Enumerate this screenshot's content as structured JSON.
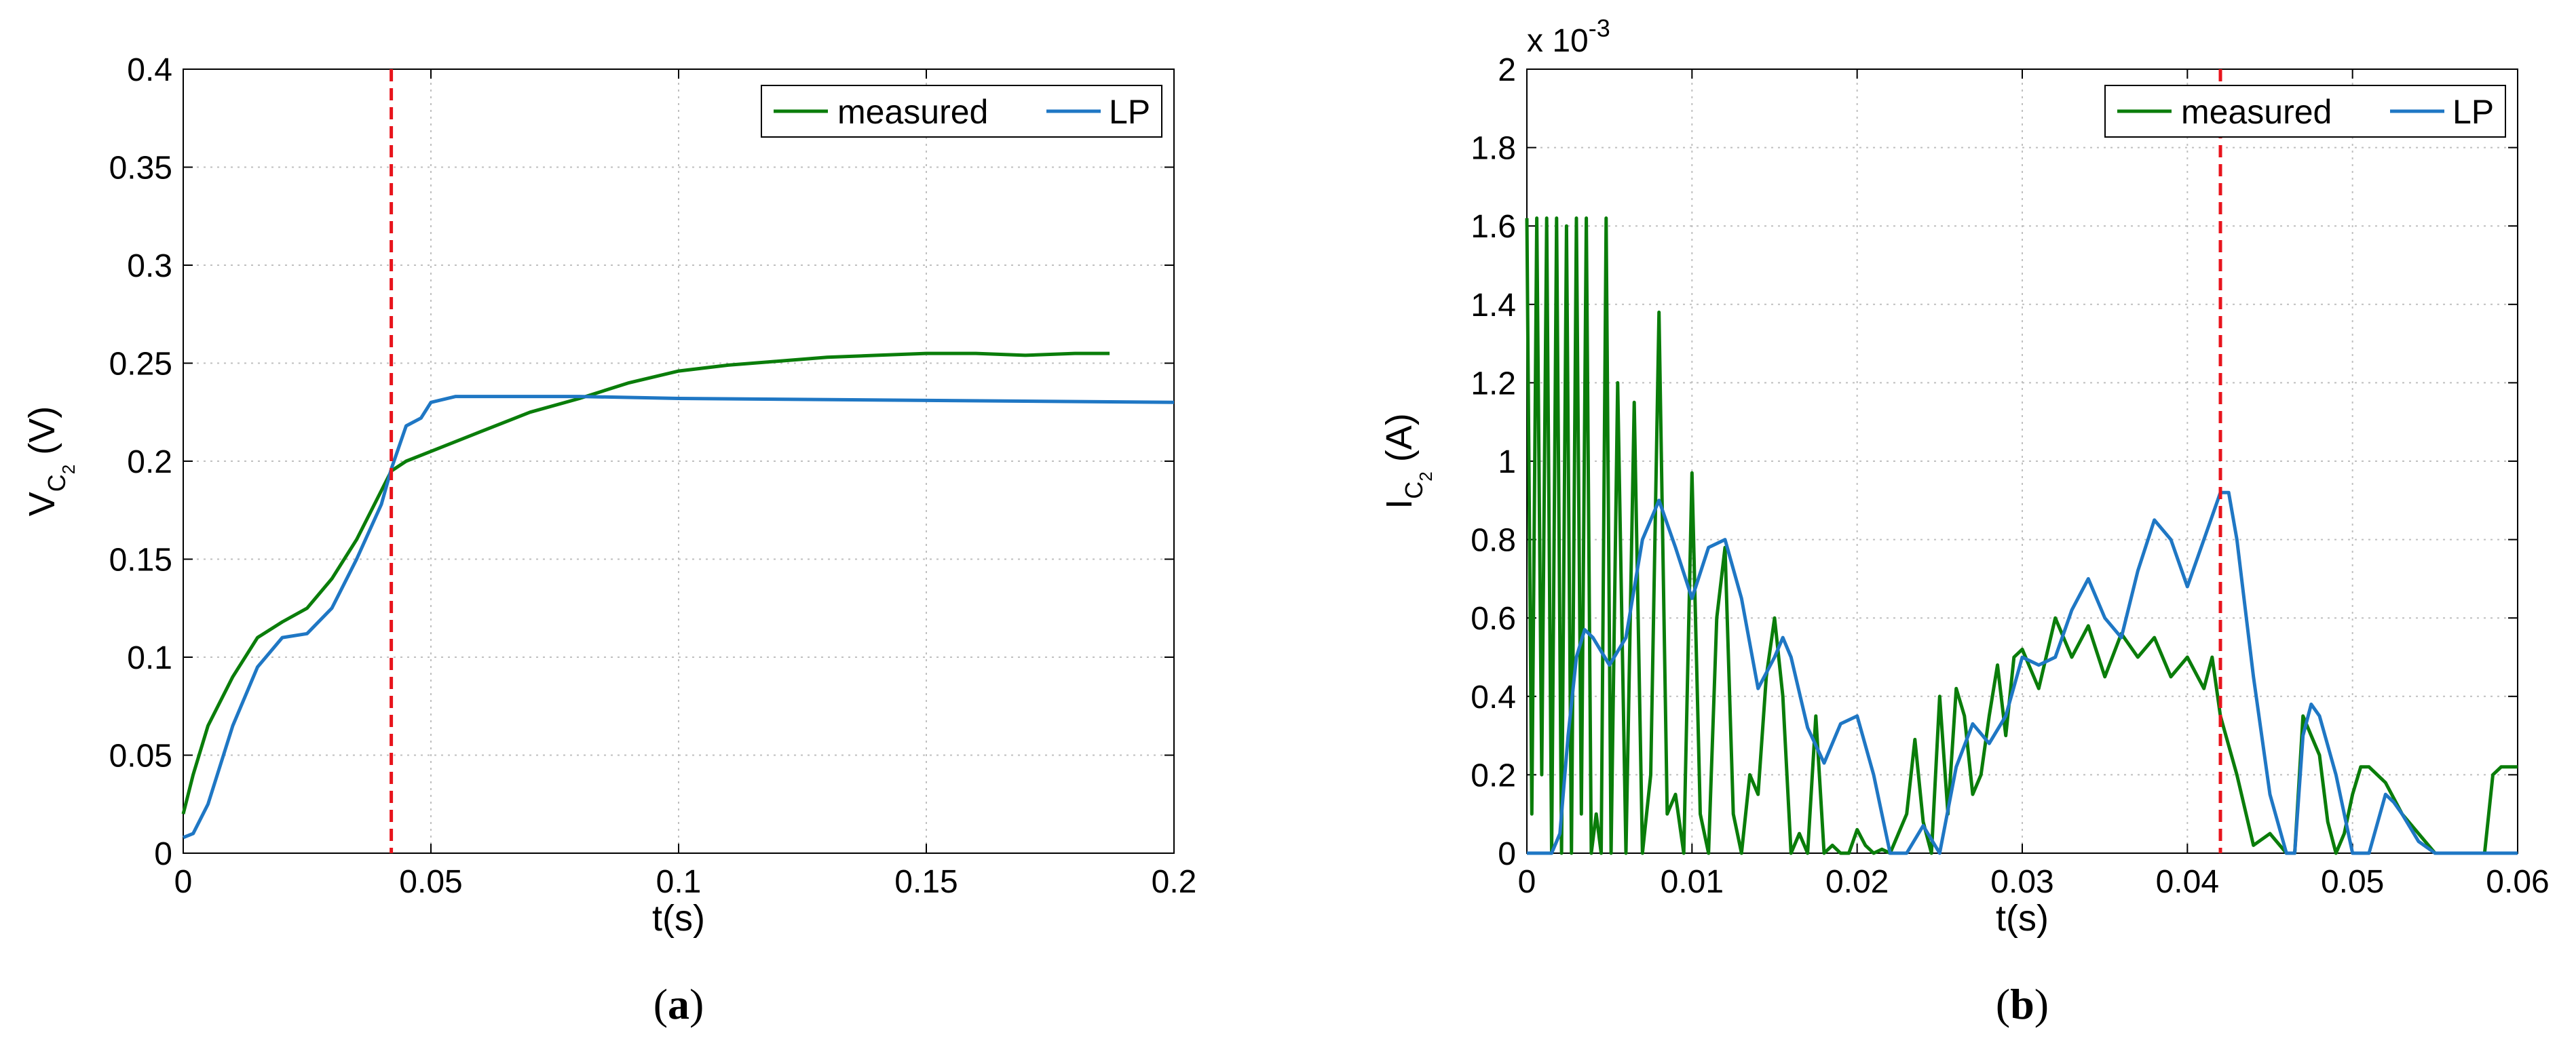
{
  "colors": {
    "measured": "#0a7d0a",
    "lp": "#1f77c4",
    "marker": "#e8141c",
    "grid": "#bfbfbf"
  },
  "chart_data": [
    {
      "panel_label": "a",
      "type": "line",
      "xlabel": "t(s)",
      "ylabel": {
        "main": "V",
        "sub1": "C",
        "sub2": "2",
        "unit": "(V)"
      },
      "xlim": [
        0,
        0.2
      ],
      "ylim": [
        0,
        0.4
      ],
      "xticks": [
        0,
        0.05,
        0.1,
        0.15,
        0.2
      ],
      "xtick_labels": [
        "0",
        "0.05",
        "0.1",
        "0.15",
        "0.2"
      ],
      "yticks": [
        0,
        0.05,
        0.1,
        0.15,
        0.2,
        0.25,
        0.3,
        0.35,
        0.4
      ],
      "ytick_labels": [
        "0",
        "0.05",
        "0.1",
        "0.15",
        "0.2",
        "0.25",
        "0.3",
        "0.35",
        "0.4"
      ],
      "grid": true,
      "legend_position": "top-right",
      "vline_x": 0.042,
      "series": [
        {
          "name": "measured",
          "color": "#0a7d0a",
          "x": [
            0,
            0.002,
            0.005,
            0.01,
            0.015,
            0.02,
            0.025,
            0.03,
            0.035,
            0.04,
            0.042,
            0.045,
            0.05,
            0.06,
            0.07,
            0.08,
            0.09,
            0.1,
            0.11,
            0.12,
            0.13,
            0.14,
            0.15,
            0.16,
            0.17,
            0.18,
            0.187
          ],
          "y": [
            0.02,
            0.04,
            0.065,
            0.09,
            0.11,
            0.118,
            0.125,
            0.14,
            0.16,
            0.185,
            0.195,
            0.2,
            0.205,
            0.215,
            0.225,
            0.232,
            0.24,
            0.246,
            0.249,
            0.251,
            0.253,
            0.254,
            0.255,
            0.255,
            0.254,
            0.255,
            0.255
          ]
        },
        {
          "name": "LP",
          "color": "#1f77c4",
          "x": [
            0,
            0.002,
            0.005,
            0.01,
            0.015,
            0.02,
            0.025,
            0.03,
            0.035,
            0.04,
            0.042,
            0.045,
            0.048,
            0.05,
            0.055,
            0.06,
            0.08,
            0.1,
            0.15,
            0.2
          ],
          "y": [
            0.008,
            0.01,
            0.025,
            0.065,
            0.095,
            0.11,
            0.112,
            0.125,
            0.15,
            0.178,
            0.196,
            0.218,
            0.222,
            0.23,
            0.233,
            0.233,
            0.233,
            0.232,
            0.231,
            0.23
          ]
        }
      ]
    },
    {
      "panel_label": "b",
      "type": "line",
      "xlabel": "t(s)",
      "ylabel": {
        "main": "I",
        "sub1": "C",
        "sub2": "2",
        "unit": "(A)"
      },
      "y_multiplier": "x 10",
      "y_multiplier_exp": "-3",
      "xlim": [
        0,
        0.06
      ],
      "ylim": [
        0,
        2
      ],
      "xticks": [
        0,
        0.01,
        0.02,
        0.03,
        0.04,
        0.05,
        0.06
      ],
      "xtick_labels": [
        "0",
        "0.01",
        "0.02",
        "0.03",
        "0.04",
        "0.05",
        "0.06"
      ],
      "yticks": [
        0,
        0.2,
        0.4,
        0.6,
        0.8,
        1,
        1.2,
        1.4,
        1.6,
        1.8,
        2
      ],
      "ytick_labels": [
        "0",
        "0.2",
        "0.4",
        "0.6",
        "0.8",
        "1",
        "1.2",
        "1.4",
        "1.6",
        "1.8",
        "2"
      ],
      "grid": true,
      "legend_position": "top-right",
      "vline_x": 0.042,
      "series": [
        {
          "name": "measured",
          "color": "#0a7d0a",
          "x": [
            0,
            0.0003,
            0.0006,
            0.0009,
            0.0012,
            0.0015,
            0.0018,
            0.0021,
            0.0024,
            0.0027,
            0.003,
            0.0033,
            0.0036,
            0.0039,
            0.0042,
            0.0045,
            0.0048,
            0.0051,
            0.0055,
            0.006,
            0.0065,
            0.007,
            0.0075,
            0.008,
            0.0085,
            0.009,
            0.0095,
            0.01,
            0.0105,
            0.011,
            0.0115,
            0.012,
            0.0125,
            0.013,
            0.0135,
            0.014,
            0.0145,
            0.015,
            0.0155,
            0.016,
            0.0165,
            0.017,
            0.0175,
            0.018,
            0.0185,
            0.019,
            0.0195,
            0.02,
            0.0205,
            0.021,
            0.0215,
            0.022,
            0.0225,
            0.023,
            0.0235,
            0.024,
            0.0245,
            0.025,
            0.0255,
            0.026,
            0.0265,
            0.027,
            0.0275,
            0.028,
            0.0285,
            0.029,
            0.0295,
            0.03,
            0.031,
            0.032,
            0.033,
            0.034,
            0.035,
            0.036,
            0.037,
            0.038,
            0.039,
            0.04,
            0.041,
            0.0415,
            0.042,
            0.043,
            0.044,
            0.045,
            0.046,
            0.0465,
            0.047,
            0.0475,
            0.048,
            0.0485,
            0.049,
            0.0495,
            0.05,
            0.0505,
            0.051,
            0.052,
            0.053,
            0.054,
            0.055,
            0.056,
            0.057,
            0.058,
            0.0585,
            0.059,
            0.06
          ],
          "y": [
            1.62,
            0.1,
            1.62,
            0.2,
            1.62,
            0,
            1.62,
            0,
            1.6,
            0,
            1.62,
            0.1,
            1.62,
            0,
            0.1,
            0,
            1.62,
            0,
            1.2,
            0,
            1.15,
            0,
            0.2,
            1.38,
            0.1,
            0.15,
            0,
            0.97,
            0.1,
            0,
            0.6,
            0.78,
            0.1,
            0,
            0.2,
            0.15,
            0.45,
            0.6,
            0.4,
            0,
            0.05,
            0,
            0.35,
            0,
            0.02,
            0,
            0,
            0.06,
            0.02,
            0,
            0.01,
            0,
            0.05,
            0.1,
            0.29,
            0.08,
            0,
            0.4,
            0.1,
            0.42,
            0.35,
            0.15,
            0.2,
            0.35,
            0.48,
            0.3,
            0.5,
            0.52,
            0.42,
            0.6,
            0.5,
            0.58,
            0.45,
            0.56,
            0.5,
            0.55,
            0.45,
            0.5,
            0.42,
            0.5,
            0.35,
            0.2,
            0.02,
            0.05,
            0,
            0,
            0.35,
            0.3,
            0.25,
            0.08,
            0,
            0.05,
            0.15,
            0.22,
            0.22,
            0.18,
            0.1,
            0.05,
            0,
            0,
            0,
            0,
            0.2,
            0.22,
            0.22
          ]
        },
        {
          "name": "LP",
          "color": "#1f77c4",
          "x": [
            0,
            0.0015,
            0.002,
            0.0025,
            0.003,
            0.0035,
            0.004,
            0.005,
            0.006,
            0.007,
            0.008,
            0.009,
            0.01,
            0.011,
            0.012,
            0.013,
            0.014,
            0.015,
            0.0155,
            0.016,
            0.017,
            0.018,
            0.019,
            0.02,
            0.021,
            0.022,
            0.023,
            0.024,
            0.025,
            0.026,
            0.027,
            0.028,
            0.029,
            0.03,
            0.031,
            0.032,
            0.033,
            0.034,
            0.035,
            0.036,
            0.037,
            0.038,
            0.039,
            0.04,
            0.041,
            0.042,
            0.0425,
            0.043,
            0.044,
            0.045,
            0.046,
            0.0465,
            0.047,
            0.0475,
            0.048,
            0.049,
            0.05,
            0.051,
            0.052,
            0.0525,
            0.053,
            0.054,
            0.055,
            0.056,
            0.057,
            0.058,
            0.06
          ],
          "y": [
            0,
            0,
            0.05,
            0.3,
            0.5,
            0.57,
            0.55,
            0.48,
            0.55,
            0.8,
            0.9,
            0.78,
            0.65,
            0.78,
            0.8,
            0.65,
            0.42,
            0.5,
            0.55,
            0.5,
            0.32,
            0.23,
            0.33,
            0.35,
            0.2,
            0,
            0,
            0.07,
            0,
            0.22,
            0.33,
            0.28,
            0.35,
            0.5,
            0.48,
            0.5,
            0.62,
            0.7,
            0.6,
            0.55,
            0.72,
            0.85,
            0.8,
            0.68,
            0.8,
            0.92,
            0.92,
            0.8,
            0.45,
            0.15,
            0,
            0,
            0.3,
            0.38,
            0.35,
            0.2,
            0,
            0,
            0.15,
            0.13,
            0.1,
            0.03,
            0,
            0,
            0,
            0,
            0
          ]
        }
      ]
    }
  ]
}
